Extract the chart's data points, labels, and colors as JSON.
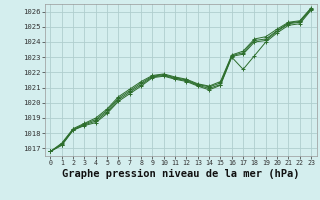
{
  "title": "Graphe pression niveau de la mer (hPa)",
  "bg_color": "#d4eeee",
  "grid_color": "#b0cece",
  "line_color": "#2d6e2d",
  "marker_color": "#2d6e2d",
  "ylim": [
    1016.5,
    1026.5
  ],
  "xlim": [
    -0.5,
    23.5
  ],
  "yticks": [
    1017,
    1018,
    1019,
    1020,
    1021,
    1022,
    1023,
    1024,
    1025,
    1026
  ],
  "xticks": [
    0,
    1,
    2,
    3,
    4,
    5,
    6,
    7,
    8,
    9,
    10,
    11,
    12,
    13,
    14,
    15,
    16,
    17,
    18,
    19,
    20,
    21,
    22,
    23
  ],
  "series": {
    "s1": [
      1016.8,
      1017.2,
      1018.2,
      1018.5,
      1018.7,
      1019.3,
      1020.1,
      1020.6,
      1021.1,
      1021.65,
      1021.75,
      1021.55,
      1021.4,
      1021.1,
      1020.85,
      1021.15,
      1023.0,
      1022.2,
      1023.1,
      1024.0,
      1024.6,
      1025.1,
      1025.2,
      1026.1
    ],
    "s2": [
      1016.8,
      1017.25,
      1018.2,
      1018.55,
      1018.8,
      1019.4,
      1020.2,
      1020.7,
      1021.2,
      1021.7,
      1021.8,
      1021.6,
      1021.45,
      1021.15,
      1020.95,
      1021.2,
      1023.05,
      1023.2,
      1024.0,
      1024.1,
      1024.7,
      1025.2,
      1025.3,
      1026.15
    ],
    "s3": [
      1016.8,
      1017.3,
      1018.25,
      1018.6,
      1018.9,
      1019.5,
      1020.3,
      1020.8,
      1021.3,
      1021.75,
      1021.85,
      1021.65,
      1021.5,
      1021.2,
      1021.05,
      1021.3,
      1023.1,
      1023.3,
      1024.1,
      1024.2,
      1024.75,
      1025.25,
      1025.35,
      1026.2
    ],
    "s4": [
      1016.8,
      1017.35,
      1018.3,
      1018.65,
      1019.0,
      1019.6,
      1020.4,
      1020.9,
      1021.4,
      1021.8,
      1021.9,
      1021.7,
      1021.55,
      1021.25,
      1021.1,
      1021.4,
      1023.15,
      1023.4,
      1024.2,
      1024.35,
      1024.85,
      1025.3,
      1025.4,
      1026.25
    ]
  },
  "xlabel_fontsize": 7,
  "title_fontsize": 7.5
}
